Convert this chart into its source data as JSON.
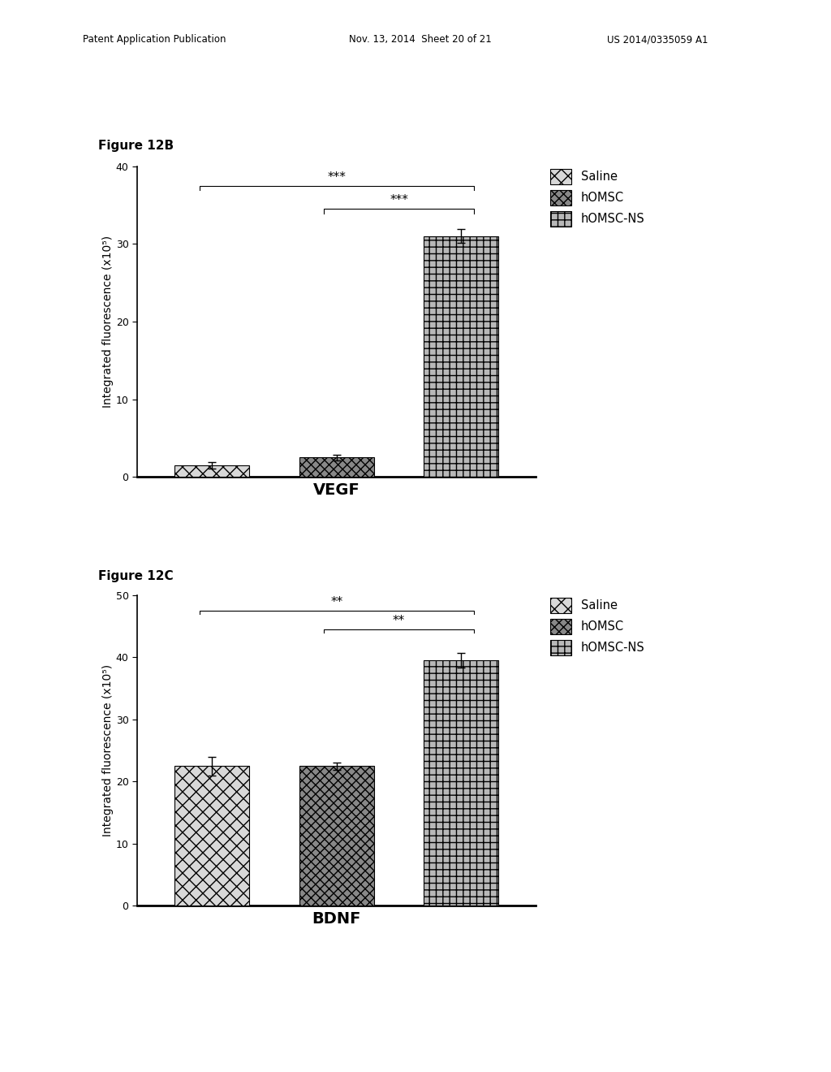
{
  "header_left": "Patent Application Publication",
  "header_mid": "Nov. 13, 2014  Sheet 20 of 21",
  "header_right": "US 2014/0335059 A1",
  "fig1_label": "Figure 12B",
  "fig2_label": "Figure 12C",
  "vegf_values": [
    1.5,
    2.5,
    31.0
  ],
  "vegf_errors": [
    0.4,
    0.4,
    0.9
  ],
  "bdnf_values": [
    22.5,
    22.5,
    39.5
  ],
  "bdnf_errors": [
    1.5,
    0.6,
    1.2
  ],
  "vegf_ylim": [
    0,
    40
  ],
  "vegf_yticks": [
    0,
    10,
    20,
    30,
    40
  ],
  "bdnf_ylim": [
    0,
    50
  ],
  "bdnf_yticks": [
    0,
    10,
    20,
    30,
    40,
    50
  ],
  "ylabel": "Integrated fluorescence (x10⁵)",
  "vegf_xlabel": "VEGF",
  "bdnf_xlabel": "BDNF",
  "vegf_sig1": "***",
  "vegf_sig2": "***",
  "bdnf_sig1": "**",
  "bdnf_sig2": "**",
  "background_color": "#ffffff",
  "bar_width": 0.6,
  "saline_facecolor": "#d8d8d8",
  "homsc_facecolor": "#888888",
  "homscns_facecolor": "#b8b8b8",
  "legend_labels": [
    "Saline",
    "hOMSC",
    "hOMSC-NS"
  ]
}
